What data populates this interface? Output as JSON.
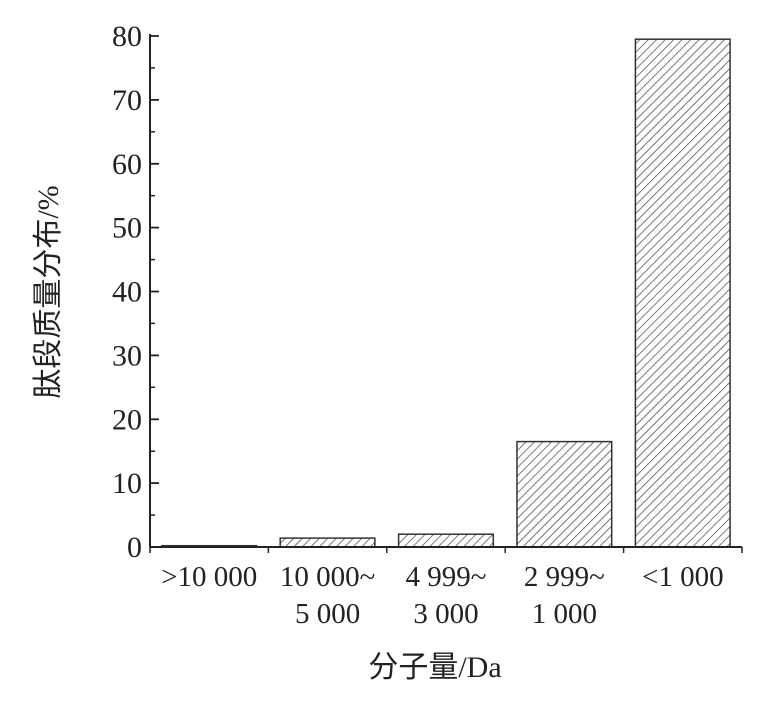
{
  "chart_data": {
    "type": "bar",
    "title": "",
    "xlabel": "分子量/Da",
    "ylabel": "肽段质量分布/%",
    "categories": [
      [
        ">10 000"
      ],
      [
        "10 000~",
        "5 000"
      ],
      [
        "4 999~",
        "3 000"
      ],
      [
        "2 999~",
        "1 000"
      ],
      [
        "<1 000"
      ]
    ],
    "values": [
      0.2,
      1.4,
      2.0,
      16.5,
      79.5
    ],
    "ylim": [
      0,
      80
    ],
    "yticks": [
      "0",
      "10",
      "20",
      "30",
      "40",
      "50",
      "60",
      "70",
      "80"
    ],
    "grid": false,
    "legend": "none",
    "bar_fill": "hatched",
    "colors": {
      "bar_stroke": "#333333",
      "hatch": "#555555",
      "axis": "#222222"
    }
  }
}
